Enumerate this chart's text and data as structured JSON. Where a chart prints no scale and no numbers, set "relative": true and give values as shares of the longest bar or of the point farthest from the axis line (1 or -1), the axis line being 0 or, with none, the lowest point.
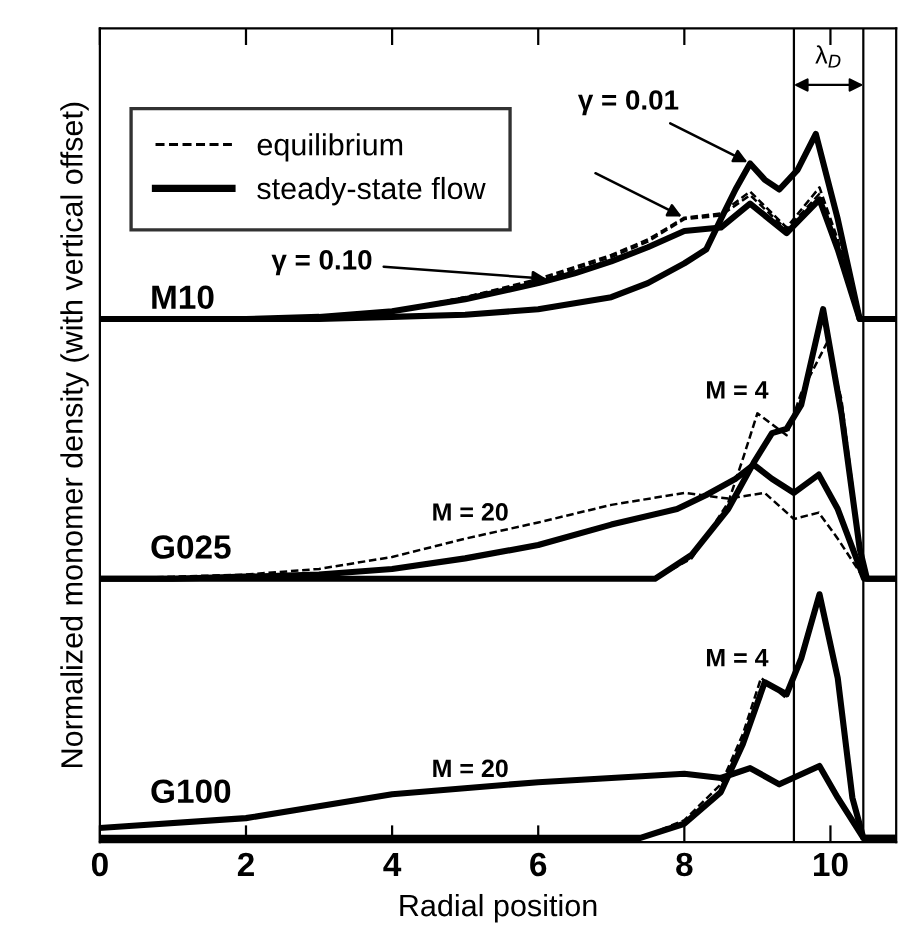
{
  "chart_data": {
    "type": "line",
    "relative": true,
    "xlabel": "Radial position",
    "ylabel": "Normalized monomer density (with vertical offset)",
    "xlim": [
      0,
      10.9
    ],
    "xticks": [
      0,
      2,
      4,
      6,
      8,
      10
    ],
    "legend": "top left",
    "series": [
      {
        "name": "equilibrium",
        "color": "#000000",
        "line_style": "dashed",
        "x": [
          0,
          2,
          3,
          4,
          5,
          6,
          6.5,
          7,
          7.5,
          8,
          8.5,
          8.9,
          9.4,
          9.85,
          10.1,
          10.4,
          10.9
        ],
        "values": [
          0.737,
          0.737,
          0.74,
          0.748,
          0.768,
          0.791,
          0.808,
          0.825,
          0.847,
          0.879,
          0.884,
          0.913,
          0.864,
          0.915,
          0.845,
          0.737,
          0.737
        ]
      },
      {
        "color": "#000000",
        "line_style": "dashed",
        "x": [
          0,
          2,
          3,
          4,
          5,
          6,
          6.5,
          7,
          7.5,
          8,
          8.5,
          8.9,
          9.4,
          9.85,
          10.1,
          10.4,
          10.9
        ],
        "values": [
          0.737,
          0.737,
          0.74,
          0.748,
          0.768,
          0.794,
          0.811,
          0.828,
          0.85,
          0.881,
          0.887,
          0.918,
          0.867,
          0.924,
          0.85,
          0.737,
          0.737
        ]
      },
      {
        "name": "steady-state flow",
        "color": "#000000",
        "line_style": "solid",
        "x": [
          0,
          2,
          3,
          4,
          5,
          6,
          6.5,
          7,
          7.5,
          8,
          8.5,
          8.9,
          9.4,
          9.85,
          10.1,
          10.4,
          10.9
        ],
        "values": [
          0.737,
          0.737,
          0.74,
          0.748,
          0.765,
          0.788,
          0.802,
          0.819,
          0.839,
          0.862,
          0.867,
          0.901,
          0.859,
          0.907,
          0.836,
          0.737,
          0.737
        ]
      },
      {
        "color": "#000000",
        "line_style": "solid",
        "x": [
          0,
          2,
          3,
          4,
          5,
          6,
          7,
          7.5,
          8,
          8.3,
          8.5,
          8.7,
          8.9,
          9.1,
          9.3,
          9.55,
          9.8,
          10.1,
          10.4,
          10.9
        ],
        "values": [
          0.737,
          0.737,
          0.737,
          0.74,
          0.743,
          0.751,
          0.768,
          0.788,
          0.816,
          0.836,
          0.879,
          0.921,
          0.958,
          0.935,
          0.921,
          0.949,
          1.0,
          0.879,
          0.737,
          0.737
        ]
      },
      {
        "color": "#000000",
        "line_style": "dashed",
        "x": [
          0,
          1,
          2,
          3,
          4,
          5,
          6,
          7,
          8,
          8.6,
          9.1,
          9.5,
          9.84,
          10.1,
          10.46,
          10.9
        ],
        "values": [
          0.368,
          0.371,
          0.374,
          0.382,
          0.399,
          0.425,
          0.448,
          0.473,
          0.49,
          0.482,
          0.49,
          0.453,
          0.462,
          0.425,
          0.368,
          0.368
        ]
      },
      {
        "color": "#000000",
        "line_style": "solid",
        "x": [
          0,
          1,
          2,
          3,
          4,
          5,
          6,
          7,
          7.9,
          8.3,
          8.7,
          8.95,
          9.2,
          9.5,
          9.84,
          10.1,
          10.46,
          10.9
        ],
        "values": [
          0.368,
          0.368,
          0.371,
          0.374,
          0.382,
          0.397,
          0.416,
          0.445,
          0.467,
          0.487,
          0.51,
          0.53,
          0.51,
          0.49,
          0.516,
          0.467,
          0.368,
          0.368
        ]
      },
      {
        "color": "#000000",
        "line_style": "dashed",
        "x": [
          0,
          2,
          4,
          6,
          7,
          7.6,
          8.1,
          8.6,
          8.8,
          9.0,
          9.4,
          9.6,
          9.95,
          10.15,
          10.4,
          10.5,
          10.9
        ],
        "values": [
          0.368,
          0.368,
          0.368,
          0.368,
          0.368,
          0.368,
          0.397,
          0.476,
          0.538,
          0.603,
          0.572,
          0.632,
          0.703,
          0.623,
          0.419,
          0.368,
          0.368
        ]
      },
      {
        "color": "#000000",
        "line_style": "solid",
        "x": [
          0,
          2,
          4,
          6,
          7,
          7.6,
          8.1,
          8.6,
          8.95,
          9.2,
          9.4,
          9.6,
          9.9,
          10.15,
          10.4,
          10.5,
          10.9
        ],
        "values": [
          0.368,
          0.368,
          0.368,
          0.368,
          0.368,
          0.368,
          0.402,
          0.467,
          0.533,
          0.575,
          0.581,
          0.615,
          0.751,
          0.603,
          0.411,
          0.368,
          0.368
        ]
      },
      {
        "color": "#000000",
        "line_style": "solid",
        "x": [
          0,
          2,
          4,
          6,
          7,
          8,
          8.5,
          8.9,
          9.3,
          9.85,
          10.1,
          10.45,
          10.9
        ],
        "values": [
          0.014,
          0.028,
          0.062,
          0.079,
          0.085,
          0.091,
          0.085,
          0.099,
          0.076,
          0.102,
          0.057,
          0,
          0
        ]
      },
      {
        "color": "#000000",
        "line_style": "dashed",
        "x": [
          0,
          2,
          4,
          6,
          7,
          7.4,
          8,
          8.5,
          8.8,
          9.05,
          9.4,
          9.6,
          9.85,
          10.1,
          10.3,
          10.45,
          10.9
        ],
        "values": [
          0,
          0,
          0,
          0,
          0,
          0,
          0.025,
          0.076,
          0.147,
          0.227,
          0.198,
          0.261,
          0.34,
          0.232,
          0.062,
          0,
          0
        ]
      },
      {
        "color": "#000000",
        "line_style": "solid",
        "x": [
          0,
          2,
          4,
          6,
          7,
          7.4,
          8,
          8.5,
          8.8,
          9.1,
          9.4,
          9.6,
          9.85,
          10.1,
          10.3,
          10.45,
          10.9
        ],
        "values": [
          0,
          0,
          0,
          0,
          0,
          0,
          0.02,
          0.065,
          0.133,
          0.221,
          0.204,
          0.255,
          0.346,
          0.227,
          0.057,
          0,
          0
        ]
      }
    ],
    "ref_lines": [
      {
        "axis": "x",
        "value": 9.5,
        "color": "#000000"
      },
      {
        "axis": "x",
        "value": 10.45,
        "color": "#000000"
      }
    ],
    "annotations": [
      "M10",
      "G025",
      "G100",
      {
        "text": "γ = 0.10",
        "x": 6.15,
        "y": 0.794
      },
      {
        "text": "γ = 0.01",
        "x": 8.9,
        "y": 0.958
      },
      "M = 20",
      "M = 4",
      "M = 20",
      "M = 4",
      "λ$_{D}$"
    ]
  }
}
